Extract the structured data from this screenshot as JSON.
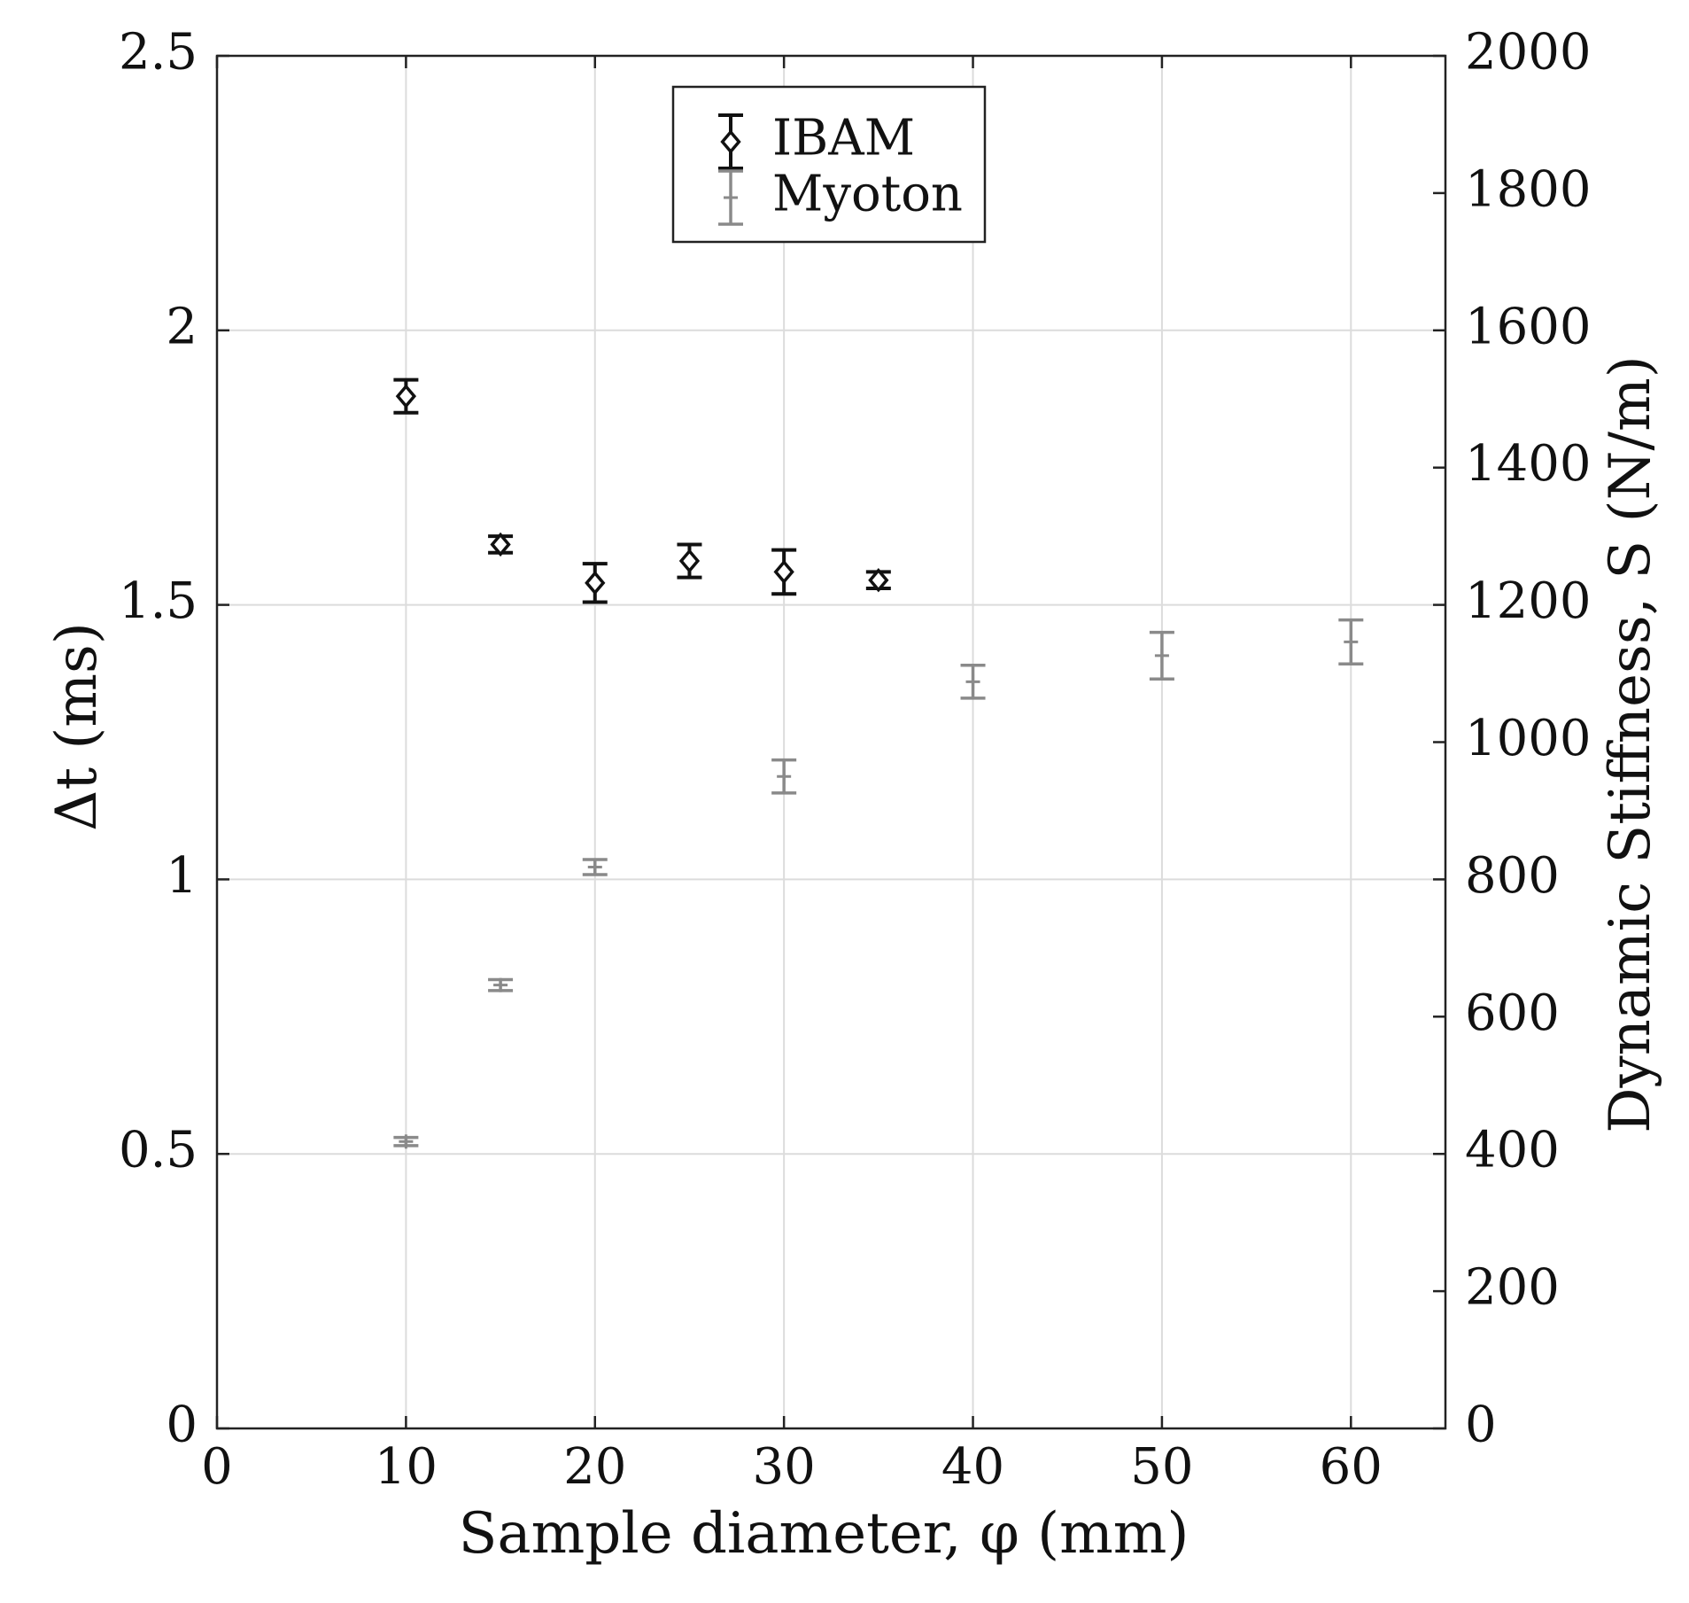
{
  "chart_data": {
    "type": "scatter",
    "title": "",
    "xlabel": "Sample diameter, φ (mm)",
    "ylabel_left": "Δt (ms)",
    "ylabel_right": "Dynamic Stiffness, S (N/m)",
    "xlim": [
      0,
      65
    ],
    "ylim_left": [
      0,
      2.5
    ],
    "ylim_right": [
      0,
      2000
    ],
    "x_ticks": [
      "0",
      "10",
      "20",
      "30",
      "40",
      "50",
      "60"
    ],
    "y_left_ticks": [
      "0",
      "0.5",
      "1",
      "1.5",
      "2",
      "2.5"
    ],
    "y_right_ticks": [
      "0",
      "200",
      "400",
      "600",
      "800",
      "1000",
      "1200",
      "1400",
      "1600",
      "1800",
      "2000"
    ],
    "grid": true,
    "legend_position": "top-center",
    "series": [
      {
        "name": "IBAM",
        "axis": "left",
        "marker": "diamond",
        "color": "#111111",
        "points": [
          {
            "x": 10,
            "y": 1.88,
            "err": 0.03
          },
          {
            "x": 15,
            "y": 1.61,
            "err": 0.015
          },
          {
            "x": 20,
            "y": 1.54,
            "err": 0.035
          },
          {
            "x": 25,
            "y": 1.58,
            "err": 0.03
          },
          {
            "x": 30,
            "y": 1.56,
            "err": 0.04
          },
          {
            "x": 35,
            "y": 1.545,
            "err": 0.015
          }
        ]
      },
      {
        "name": "Myoton",
        "axis": "right",
        "marker": "plus",
        "color": "#8a8a8a",
        "points": [
          {
            "x": 10,
            "y": 418,
            "err": 6
          },
          {
            "x": 15,
            "y": 646,
            "err": 8
          },
          {
            "x": 20,
            "y": 818,
            "err": 11
          },
          {
            "x": 30,
            "y": 950,
            "err": 24
          },
          {
            "x": 40,
            "y": 1088,
            "err": 24
          },
          {
            "x": 50,
            "y": 1126,
            "err": 34
          },
          {
            "x": 60,
            "y": 1146,
            "err": 32
          }
        ]
      }
    ]
  }
}
